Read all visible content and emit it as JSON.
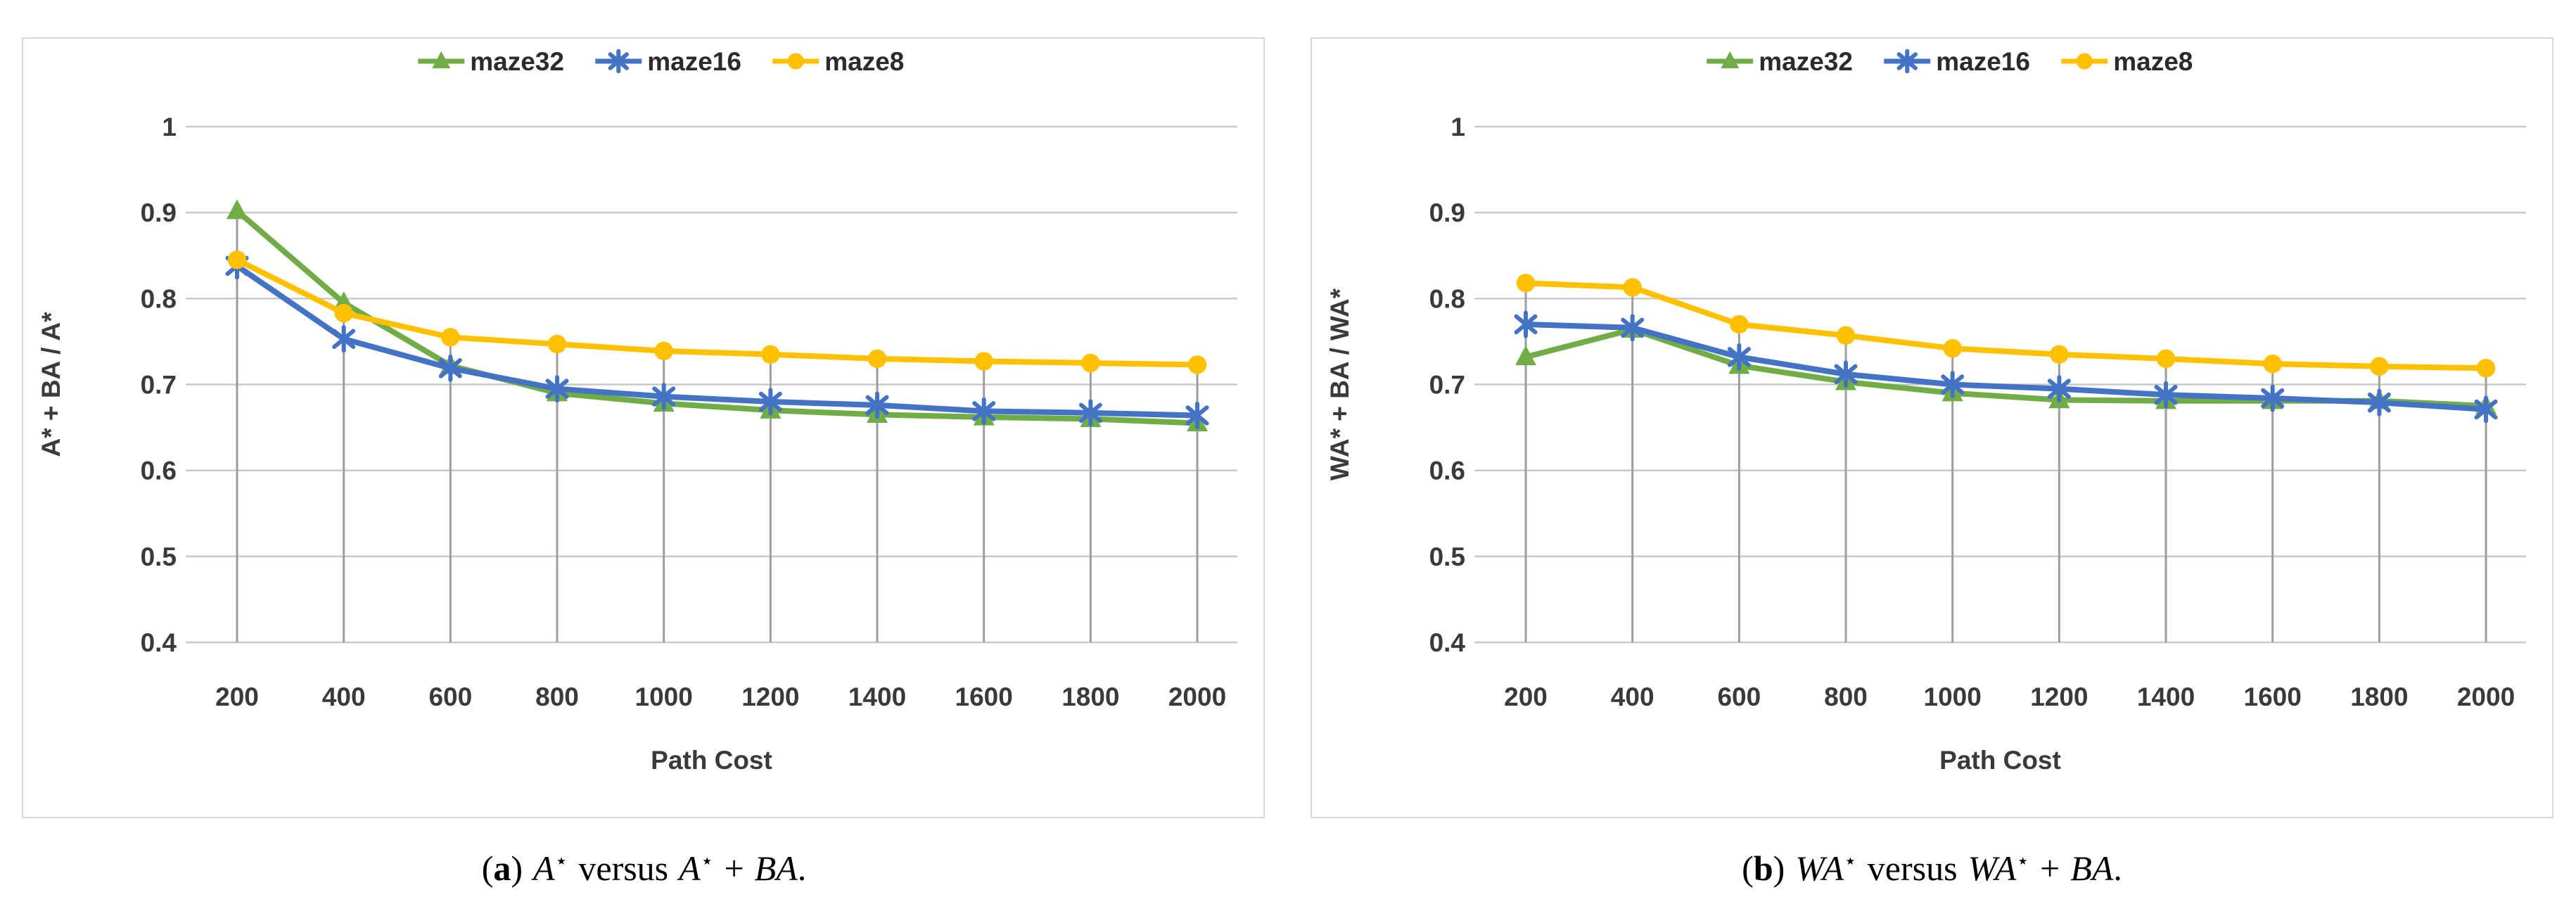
{
  "figure": {
    "background": "#ffffff",
    "panel_border_color": "#D8D8D8",
    "gridline_color": "#C9C9C9",
    "dropline_color": "#9E9E9E",
    "text_color": "#3A3A3A"
  },
  "chart_data": [
    {
      "type": "line",
      "panel": "a",
      "title": "",
      "xlabel": "Path Cost",
      "ylabel": "A* + BA / A*",
      "x": [
        200,
        400,
        600,
        800,
        1000,
        1200,
        1400,
        1600,
        1800,
        2000
      ],
      "xtick_labels": [
        "200",
        "400",
        "600",
        "800",
        "1000",
        "1200",
        "1400",
        "1600",
        "1800",
        "2000"
      ],
      "ylim": [
        0.4,
        1.0
      ],
      "ytick_values": [
        1.0,
        0.9,
        0.8,
        0.7,
        0.6,
        0.5,
        0.4
      ],
      "ytick_labels": [
        "1",
        "0.9",
        "0.8",
        "0.7",
        "0.6",
        "0.5",
        "0.4"
      ],
      "grid": "horizontal-gridlines-plus-droplines",
      "legend_position": "top-center",
      "series": [
        {
          "name": "maze32",
          "color": "#70AD47",
          "marker": "triangle",
          "values": [
            0.902,
            0.795,
            0.722,
            0.69,
            0.678,
            0.67,
            0.665,
            0.662,
            0.66,
            0.655
          ]
        },
        {
          "name": "maze16",
          "color": "#4472C4",
          "marker": "asterisk",
          "values": [
            0.838,
            0.753,
            0.719,
            0.695,
            0.686,
            0.68,
            0.676,
            0.669,
            0.667,
            0.664
          ]
        },
        {
          "name": "maze8",
          "color": "#FFC000",
          "marker": "circle",
          "values": [
            0.845,
            0.783,
            0.755,
            0.747,
            0.739,
            0.735,
            0.73,
            0.727,
            0.725,
            0.723
          ]
        }
      ]
    },
    {
      "type": "line",
      "panel": "b",
      "title": "",
      "xlabel": "Path Cost",
      "ylabel": "WA* + BA / WA*",
      "x": [
        200,
        400,
        600,
        800,
        1000,
        1200,
        1400,
        1600,
        1800,
        2000
      ],
      "xtick_labels": [
        "200",
        "400",
        "600",
        "800",
        "1000",
        "1200",
        "1400",
        "1600",
        "1800",
        "2000"
      ],
      "ylim": [
        0.4,
        1.0
      ],
      "ytick_values": [
        1.0,
        0.9,
        0.8,
        0.7,
        0.6,
        0.5,
        0.4
      ],
      "ytick_labels": [
        "1",
        "0.9",
        "0.8",
        "0.7",
        "0.6",
        "0.5",
        "0.4"
      ],
      "grid": "horizontal-gridlines-plus-droplines",
      "legend_position": "top-center",
      "series": [
        {
          "name": "maze32",
          "color": "#70AD47",
          "marker": "triangle",
          "values": [
            0.732,
            0.764,
            0.722,
            0.703,
            0.69,
            0.682,
            0.681,
            0.681,
            0.681,
            0.675
          ]
        },
        {
          "name": "maze16",
          "color": "#4472C4",
          "marker": "asterisk",
          "values": [
            0.77,
            0.766,
            0.732,
            0.712,
            0.7,
            0.695,
            0.688,
            0.684,
            0.679,
            0.671
          ]
        },
        {
          "name": "maze8",
          "color": "#FFC000",
          "marker": "circle",
          "values": [
            0.818,
            0.813,
            0.77,
            0.757,
            0.742,
            0.735,
            0.73,
            0.724,
            0.721,
            0.719
          ]
        }
      ]
    }
  ],
  "captions": {
    "a": {
      "paren_open": "(",
      "letter": "a",
      "paren_close": ")",
      "term1": "A",
      "star1": "⋆",
      "versus": "versus",
      "term2": "A",
      "star2": "⋆",
      "plus": "+",
      "term3": "BA",
      "period": "."
    },
    "b": {
      "paren_open": "(",
      "letter": "b",
      "paren_close": ")",
      "term1": "WA",
      "star1": "⋆",
      "versus": "versus",
      "term2": "WA",
      "star2": "⋆",
      "plus": "+",
      "term3": "BA",
      "period": "."
    }
  }
}
